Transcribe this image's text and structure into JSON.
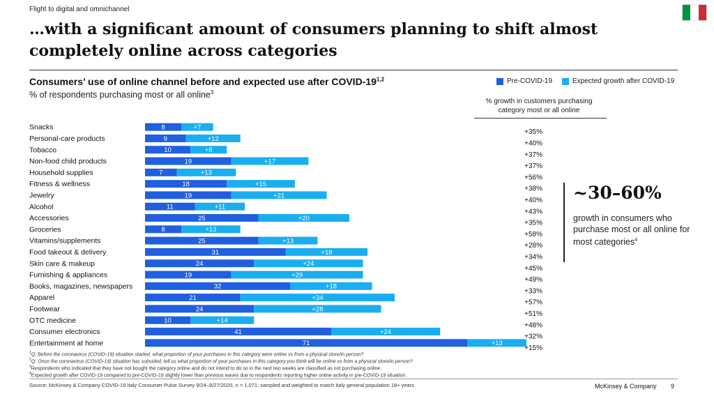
{
  "header": {
    "section_label": "Flight to digital and omnichannel",
    "title": "…with a significant amount of consumers planning to shift almost completely online across categories",
    "flag_colors": [
      "#009246",
      "#ffffff",
      "#ce2b37"
    ]
  },
  "chart_heading": {
    "title": "Consumers’ use of online channel before and expected use after COVID-19",
    "title_sup": "1,2",
    "subtitle": "% of respondents purchasing most or all online",
    "subtitle_sup": "3"
  },
  "legend": {
    "pre": "Pre-COVID-19",
    "post": "Expected growth after COVID-19"
  },
  "colors": {
    "pre": "#1f5fe0",
    "post": "#1aaef0"
  },
  "growth_header": "% growth in customers purchasing category most or all online",
  "chart_data": {
    "type": "bar",
    "orientation": "horizontal",
    "stacked": true,
    "categories": [
      "Snacks",
      "Personal-care products",
      "Tobacco",
      "Non-food child products",
      "Household supplies",
      "Fitness & wellness",
      "Jewelry",
      "Alcohol",
      "Accessories",
      "Groceries",
      "Vitamins/supplements",
      "Food takeout & delivery",
      "Skin care & makeup",
      "Furnishing & appliances",
      "Books, magazines, newspapers",
      "Apparel",
      "Footwear",
      "OTC medicine",
      "Consumer electronics",
      "Entertainment at home"
    ],
    "series": [
      {
        "name": "Pre-COVID-19",
        "values": [
          8,
          9,
          10,
          19,
          7,
          18,
          19,
          11,
          25,
          8,
          25,
          31,
          24,
          19,
          32,
          21,
          24,
          10,
          41,
          71
        ],
        "labels": [
          "8",
          "9",
          "10",
          "19",
          "7",
          "18",
          "19",
          "11",
          "25",
          "8",
          "25",
          "31",
          "24",
          "19",
          "32",
          "21",
          "24",
          "10",
          "41",
          "71"
        ]
      },
      {
        "name": "Expected growth after COVID-19",
        "values": [
          7,
          12,
          8,
          17,
          13,
          15,
          21,
          11,
          20,
          13,
          13,
          18,
          24,
          29,
          18,
          34,
          28,
          14,
          24,
          13
        ],
        "labels": [
          "+7",
          "+12",
          "+8",
          "+17",
          "+13",
          "+15",
          "+21",
          "+11",
          "+20",
          "+13",
          "+13",
          "+18",
          "+24",
          "+29",
          "+18",
          "+34",
          "+28",
          "+14",
          "+24",
          "+13"
        ]
      }
    ],
    "growth": [
      "+35%",
      "+40%",
      "+37%",
      "+37%",
      "+56%",
      "+38%",
      "+40%",
      "+43%",
      "+35%",
      "+58%",
      "+28%",
      "+34%",
      "+45%",
      "+49%",
      "+33%",
      "+57%",
      "+51%",
      "+48%",
      "+32%",
      "+15%"
    ],
    "xlim": [
      0,
      86
    ]
  },
  "callout": {
    "big": "~30–60%",
    "text": "growth in consumers who purchase most or all online for most categories",
    "sup": "4"
  },
  "footnotes": [
    {
      "num": "1",
      "text": "Q: Before the coronavirus (COVID-19) situation started, what proportion of your purchases in this category were online vs from a physical store/in person?"
    },
    {
      "num": "2",
      "text": "Q: Once the coronavirus (COVID-19) situation has subsided, tell us what proportion of your purchases in this category you think will be online vs from a physical store/in person?"
    },
    {
      "num": "3",
      "text": "Respondents who indicated that they have not bought the category online and do not intend to do so in the next two weeks are classified as not purchasing online."
    },
    {
      "num": "4",
      "text": "Expected growth after COVID-19 compared to pre-COVID-19 slightly lower than previous waves due to respondents reporting higher online activity in pre-COVID-19 situation."
    }
  ],
  "source": "Source: McKinsey & Company COVID-19 Italy Consumer Pulse Survey 9/24–9/27/2020, n = 1,071; sampled and weighted to match Italy general population 18+ years",
  "footer": {
    "company": "McKinsey & Company",
    "page": "9"
  }
}
